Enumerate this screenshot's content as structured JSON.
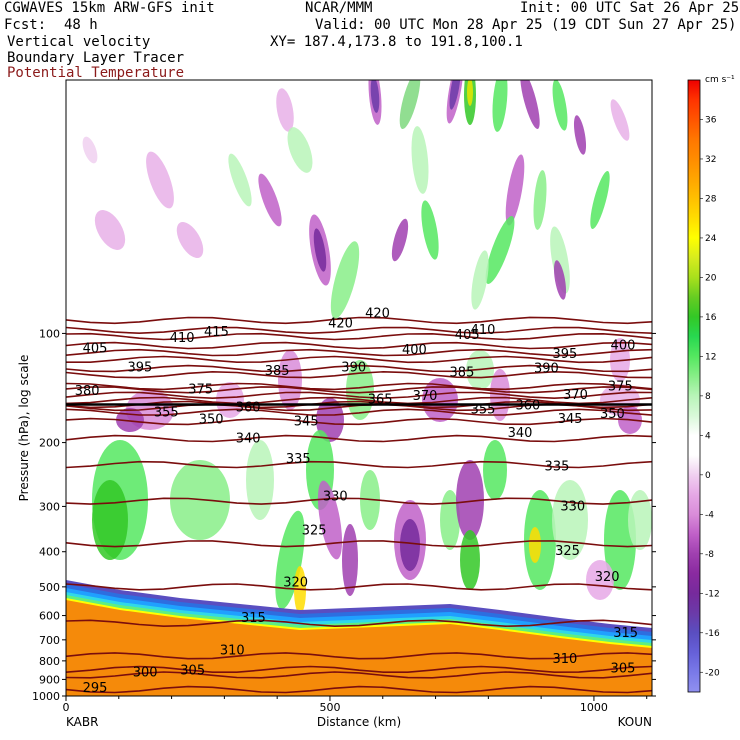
{
  "header": {
    "model": "CGWAVES 15km ARW-GFS init",
    "center": "NCAR/MMM",
    "init": "Init: 00 UTC Sat 26 Apr 25",
    "fcst_label": "Fcst:",
    "fcst_value": "48 h",
    "valid": "Valid: 00 UTC Mon 28 Apr 25 (19 CDT Sun 27 Apr 25)",
    "field1": "Vertical velocity",
    "field2": "Boundary Layer Tracer",
    "field3": "Potential Temperature",
    "xy": "XY= 187.4,173.8 to 191.8,100.1"
  },
  "colors": {
    "theta_contour": "#7a0d0d",
    "terrain": "#f58a0a",
    "field3_text": "#8b1a1a"
  },
  "chart_data": {
    "type": "heatmap",
    "xlabel": "Distance (km)",
    "ylabel": "Pressure (hPa), log scale",
    "x_ticks": [
      0,
      500,
      1000
    ],
    "x_range": [
      0,
      1110
    ],
    "y_ticks": [
      100,
      200,
      300,
      400,
      500,
      600,
      700,
      800,
      900,
      1000
    ],
    "y_range": [
      1000,
      20
    ],
    "y_scale": "log",
    "left_station": "KABR",
    "right_station": "KOUN",
    "colorbar": {
      "unit": "cm s⁻¹",
      "labels": [
        36,
        32,
        28,
        24,
        20,
        16,
        12,
        8,
        4,
        0,
        -4,
        -8,
        -12,
        -16,
        -20
      ],
      "colors": [
        "#ee0000",
        "#ff3300",
        "#ff5500",
        "#ff7700",
        "#ff8c00",
        "#ffa500",
        "#ffc000",
        "#ffdd00",
        "#ffff00",
        "#d8ec1e",
        "#a8e01c",
        "#66cc22",
        "#33c826",
        "#28d850",
        "#55e860",
        "#88ee88",
        "#b8f4b8",
        "#d8f8d8",
        "#ffffff",
        "#ffffff",
        "#f0d0f0",
        "#e6a8e6",
        "#d98cd9",
        "#c060c8",
        "#a040b0",
        "#8a2aa0",
        "#762a9c",
        "#6b3aa8",
        "#5a4ec0",
        "#6660d8",
        "#7a7ae8",
        "#9090f0"
      ]
    },
    "series": [
      {
        "name": "Potential Temperature",
        "values": [
          {
            "theta": 295,
            "level_hPa": 960
          },
          {
            "theta": 300,
            "level_hPa": 875
          },
          {
            "theta": 305,
            "level_hPa": 845
          },
          {
            "theta": 310,
            "level_hPa": 775
          },
          {
            "theta": 315,
            "level_hPa": 630
          },
          {
            "theta": 320,
            "level_hPa": 500
          },
          {
            "theta": 325,
            "level_hPa": 380
          },
          {
            "theta": 330,
            "level_hPa": 290
          },
          {
            "theta": 335,
            "level_hPa": 230
          },
          {
            "theta": 340,
            "level_hPa": 195
          },
          {
            "theta": 345,
            "level_hPa": 175
          },
          {
            "theta": 350,
            "level_hPa": 165
          },
          {
            "theta": 355,
            "level_hPa": 160
          },
          {
            "theta": 360,
            "level_hPa": 157
          },
          {
            "theta": 365,
            "level_hPa": 153
          },
          {
            "theta": 370,
            "level_hPa": 148
          },
          {
            "theta": 375,
            "level_hPa": 143
          },
          {
            "theta": 380,
            "level_hPa": 140
          },
          {
            "theta": 385,
            "level_hPa": 130
          },
          {
            "theta": 390,
            "level_hPa": 125
          },
          {
            "theta": 395,
            "level_hPa": 118
          },
          {
            "theta": 400,
            "level_hPa": 113
          },
          {
            "theta": 405,
            "level_hPa": 108
          },
          {
            "theta": 410,
            "level_hPa": 102
          },
          {
            "theta": 415,
            "level_hPa": 98
          },
          {
            "theta": 420,
            "level_hPa": 92
          }
        ]
      }
    ],
    "contour_labels": [
      {
        "text": "420",
        "x": 590,
        "p": 88
      },
      {
        "text": "420",
        "x": 520,
        "p": 94
      },
      {
        "text": "415",
        "x": 285,
        "p": 99
      },
      {
        "text": "410",
        "x": 220,
        "p": 103
      },
      {
        "text": "410",
        "x": 790,
        "p": 98
      },
      {
        "text": "405",
        "x": 55,
        "p": 110
      },
      {
        "text": "405",
        "x": 760,
        "p": 101
      },
      {
        "text": "400",
        "x": 660,
        "p": 111
      },
      {
        "text": "400",
        "x": 1055,
        "p": 108
      },
      {
        "text": "395",
        "x": 140,
        "p": 124
      },
      {
        "text": "395",
        "x": 945,
        "p": 114
      },
      {
        "text": "390",
        "x": 545,
        "p": 124
      },
      {
        "text": "390",
        "x": 910,
        "p": 125
      },
      {
        "text": "385",
        "x": 400,
        "p": 127
      },
      {
        "text": "385",
        "x": 750,
        "p": 128
      },
      {
        "text": "380",
        "x": 40,
        "p": 144
      },
      {
        "text": "375",
        "x": 255,
        "p": 143
      },
      {
        "text": "375",
        "x": 1050,
        "p": 140
      },
      {
        "text": "370",
        "x": 680,
        "p": 149
      },
      {
        "text": "370",
        "x": 965,
        "p": 148
      },
      {
        "text": "365",
        "x": 595,
        "p": 152
      },
      {
        "text": "360",
        "x": 345,
        "p": 160
      },
      {
        "text": "360",
        "x": 875,
        "p": 158
      },
      {
        "text": "355",
        "x": 190,
        "p": 165
      },
      {
        "text": "355",
        "x": 790,
        "p": 162
      },
      {
        "text": "350",
        "x": 275,
        "p": 173
      },
      {
        "text": "350",
        "x": 1035,
        "p": 167
      },
      {
        "text": "345",
        "x": 455,
        "p": 175
      },
      {
        "text": "345",
        "x": 955,
        "p": 172
      },
      {
        "text": "340",
        "x": 345,
        "p": 195
      },
      {
        "text": "340",
        "x": 860,
        "p": 188
      },
      {
        "text": "335",
        "x": 440,
        "p": 222
      },
      {
        "text": "335",
        "x": 930,
        "p": 233
      },
      {
        "text": "330",
        "x": 510,
        "p": 282
      },
      {
        "text": "330",
        "x": 960,
        "p": 300
      },
      {
        "text": "325",
        "x": 470,
        "p": 350
      },
      {
        "text": "325",
        "x": 950,
        "p": 398
      },
      {
        "text": "320",
        "x": 435,
        "p": 487
      },
      {
        "text": "320",
        "x": 1025,
        "p": 470
      },
      {
        "text": "315",
        "x": 355,
        "p": 610
      },
      {
        "text": "315",
        "x": 1060,
        "p": 670
      },
      {
        "text": "310",
        "x": 315,
        "p": 750
      },
      {
        "text": "310",
        "x": 945,
        "p": 790
      },
      {
        "text": "305",
        "x": 240,
        "p": 850
      },
      {
        "text": "305",
        "x": 1055,
        "p": 840
      },
      {
        "text": "300",
        "x": 150,
        "p": 860
      },
      {
        "text": "295",
        "x": 55,
        "p": 950
      }
    ]
  }
}
